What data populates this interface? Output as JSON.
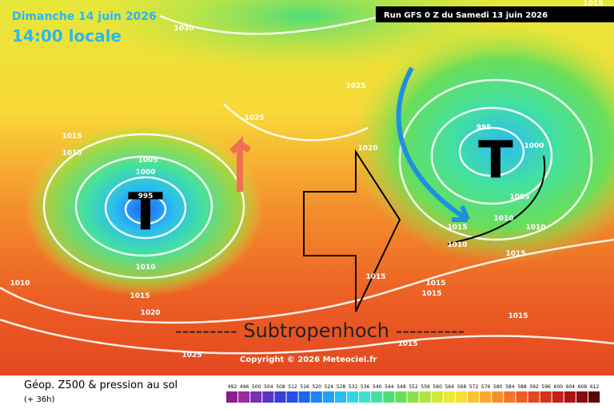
{
  "header": {
    "date": "Dimanche 14 juin 2026",
    "time": "14:00 locale",
    "run": "Run GFS 0 Z du Samedi 13 juin 2026"
  },
  "map": {
    "lows": [
      "T",
      "T"
    ],
    "annotation": "--------- Subtropenhoch ----------",
    "copyright": "Copyright © 2026 Meteociel.fr",
    "isobar_labels": [
      1030,
      1025,
      1025,
      1015,
      1015,
      1005,
      1000,
      995,
      1020,
      995,
      1000,
      1005,
      1010,
      1015,
      1010,
      1010,
      1015,
      1010,
      1015,
      1020,
      1015,
      1015,
      1015,
      1015,
      1015,
      1025,
      1010,
      1015
    ]
  },
  "footer": {
    "title": "Géop. Z500 & pression au sol",
    "lead": "(+ 36h)"
  },
  "scale": {
    "values": [
      492,
      496,
      500,
      504,
      508,
      512,
      516,
      520,
      524,
      528,
      532,
      536,
      540,
      544,
      548,
      552,
      556,
      560,
      564,
      568,
      572,
      576,
      580,
      584,
      588,
      592,
      596,
      600,
      604,
      608,
      612
    ],
    "colors": [
      "#8a1f8a",
      "#9a2aa0",
      "#7a2fb5",
      "#5c33c8",
      "#3a3fd8",
      "#2850e8",
      "#1e66f2",
      "#1f84f5",
      "#22a0f5",
      "#2bbcf0",
      "#35d4e6",
      "#3de0c8",
      "#43e0a0",
      "#4fdc7a",
      "#6ade5a",
      "#8ee048",
      "#b0e43e",
      "#d0e83a",
      "#ece83a",
      "#f8dc38",
      "#f8c434",
      "#f7aa30",
      "#f4902c",
      "#f07628",
      "#ec5e24",
      "#e44820",
      "#d8321c",
      "#c42018",
      "#a81414",
      "#880c0c",
      "#5c0606"
    ]
  }
}
